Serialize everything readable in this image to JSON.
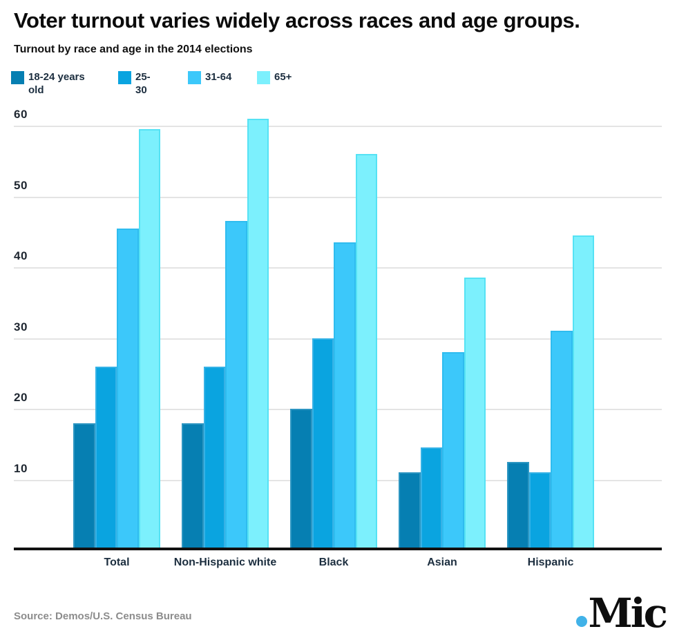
{
  "header": {
    "title": "Voter turnout varies widely across races and age groups.",
    "subtitle": "Turnout by race and age in the 2014 elections"
  },
  "chart_data": {
    "type": "bar",
    "title": "Voter turnout varies widely across races and age groups.",
    "subtitle": "Turnout by race and age in the 2014 elections",
    "xlabel": "",
    "ylabel": "",
    "ylim": [
      0,
      63
    ],
    "yticks": [
      60,
      50,
      40,
      30,
      20,
      10
    ],
    "grid": true,
    "legend_position": "top",
    "categories": [
      "Total",
      "Non-Hispanic white",
      "Black",
      "Asian",
      "Hispanic"
    ],
    "series": [
      {
        "name": "18-24 years old",
        "color": "#067fb2",
        "border_color": "#2d96c2",
        "values": [
          18,
          18,
          20,
          11,
          12.5
        ]
      },
      {
        "name": "25-30",
        "color": "#0aa4e0",
        "border_color": "#36b2e6",
        "values": [
          26,
          26,
          30,
          14.5,
          11
        ]
      },
      {
        "name": "31-64",
        "color": "#3cc8fa",
        "border_color": "#2fbcef",
        "values": [
          45.5,
          46.5,
          43.5,
          28,
          31
        ]
      },
      {
        "name": "65+",
        "color": "#7cf0fd",
        "border_color": "#55e2f4",
        "values": [
          59.5,
          61,
          56,
          38.5,
          44.5
        ]
      }
    ]
  },
  "footer": {
    "source": "Source: Demos/U.S. Census Bureau",
    "logo_text": "Mic",
    "logo_dot_color": "#41b2e8"
  }
}
